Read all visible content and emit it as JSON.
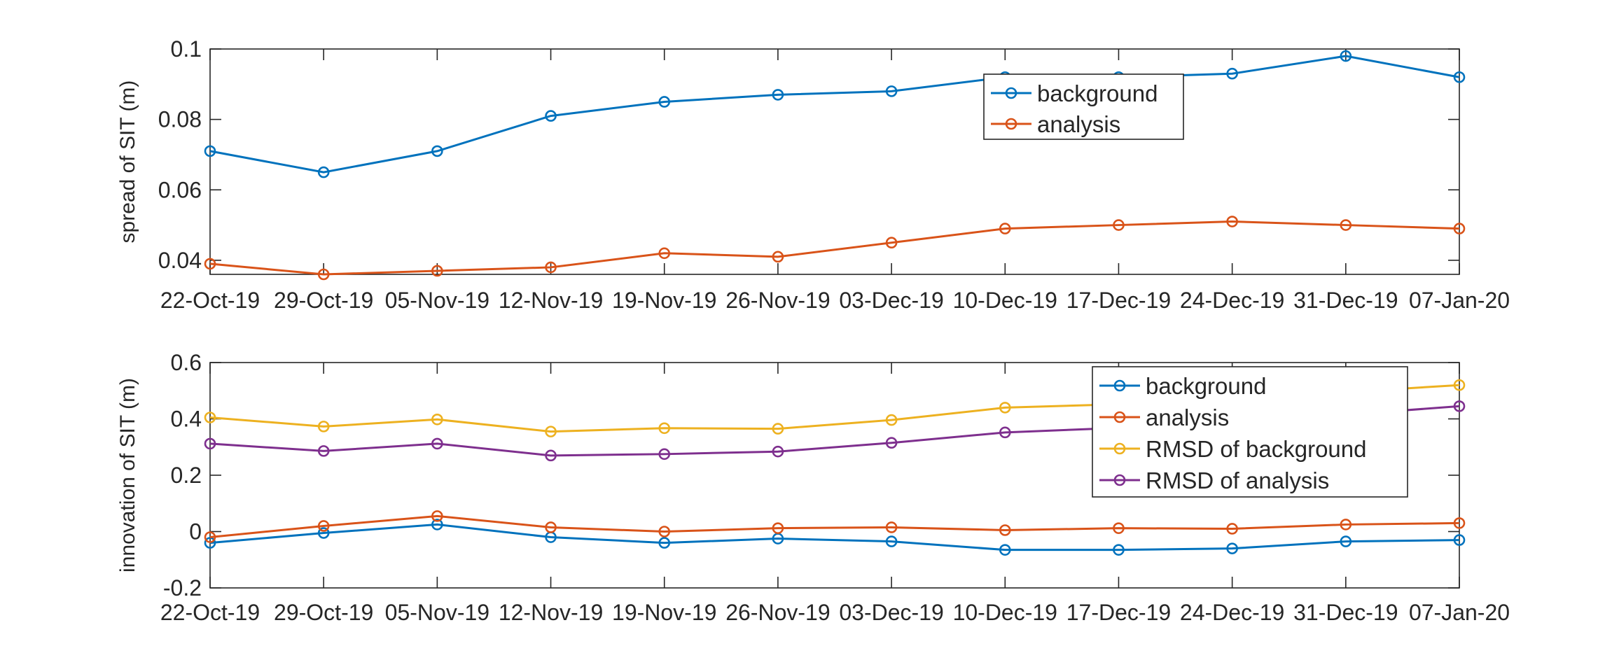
{
  "colors": {
    "background": "#0072BD",
    "analysis": "#D95319",
    "rmsd_background": "#EDB120",
    "rmsd_analysis": "#7E2F8E",
    "axis": "#262626"
  },
  "chart_data": [
    {
      "type": "line",
      "ylabel": "spread of SIT (m)",
      "ylim": [
        0.036,
        0.1
      ],
      "yticks": [
        "0.04",
        "0.06",
        "0.08",
        "0.1"
      ],
      "ytick_values": [
        0.04,
        0.06,
        0.08,
        0.1
      ],
      "categories": [
        "22-Oct-19",
        "29-Oct-19",
        "05-Nov-19",
        "12-Nov-19",
        "19-Nov-19",
        "26-Nov-19",
        "03-Dec-19",
        "10-Dec-19",
        "17-Dec-19",
        "24-Dec-19",
        "31-Dec-19",
        "07-Jan-20"
      ],
      "grid": false,
      "legend_position": "top-right",
      "series": [
        {
          "name": "background",
          "color_key": "background",
          "values": [
            0.071,
            0.065,
            0.071,
            0.081,
            0.085,
            0.087,
            0.088,
            0.092,
            0.092,
            0.093,
            0.098,
            0.092
          ]
        },
        {
          "name": "analysis",
          "color_key": "analysis",
          "values": [
            0.039,
            0.036,
            0.037,
            0.038,
            0.042,
            0.041,
            0.045,
            0.049,
            0.05,
            0.051,
            0.05,
            0.049
          ]
        }
      ]
    },
    {
      "type": "line",
      "ylabel": "innovation of SIT (m)",
      "ylim": [
        -0.2,
        0.6
      ],
      "yticks": [
        "-0.2",
        "0",
        "0.2",
        "0.4",
        "0.6"
      ],
      "ytick_values": [
        -0.2,
        0,
        0.2,
        0.4,
        0.6
      ],
      "categories": [
        "22-Oct-19",
        "29-Oct-19",
        "05-Nov-19",
        "12-Nov-19",
        "19-Nov-19",
        "26-Nov-19",
        "03-Dec-19",
        "10-Dec-19",
        "17-Dec-19",
        "24-Dec-19",
        "31-Dec-19",
        "07-Jan-20"
      ],
      "grid": false,
      "legend_position": "top-right",
      "series": [
        {
          "name": "background",
          "color_key": "background",
          "values": [
            -0.04,
            -0.005,
            0.025,
            -0.02,
            -0.04,
            -0.025,
            -0.035,
            -0.065,
            -0.065,
            -0.06,
            -0.035,
            -0.03
          ]
        },
        {
          "name": "analysis",
          "color_key": "analysis",
          "values": [
            -0.02,
            0.02,
            0.055,
            0.015,
            0.0,
            0.012,
            0.015,
            0.005,
            0.012,
            0.01,
            0.025,
            0.03
          ]
        },
        {
          "name": "RMSD of background",
          "color_key": "rmsd_background",
          "values": [
            0.405,
            0.373,
            0.398,
            0.355,
            0.367,
            0.365,
            0.396,
            0.44,
            0.452,
            0.475,
            0.495,
            0.52
          ]
        },
        {
          "name": "RMSD of analysis",
          "color_key": "rmsd_analysis",
          "values": [
            0.312,
            0.286,
            0.312,
            0.27,
            0.275,
            0.284,
            0.315,
            0.352,
            0.368,
            0.39,
            0.415,
            0.445
          ]
        }
      ]
    }
  ]
}
